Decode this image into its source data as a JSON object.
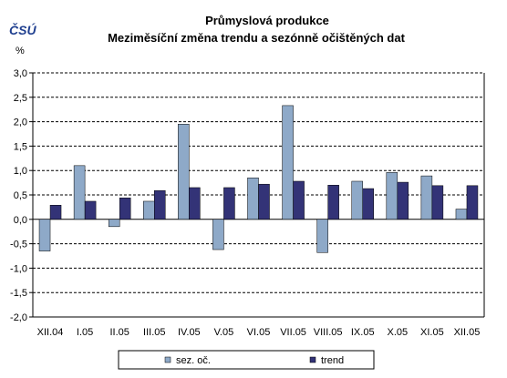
{
  "logo_text": "ČSÚ",
  "chart_data": {
    "type": "bar",
    "title": "Průmyslová produkce",
    "subtitle": "Meziměsíční změna trendu a sezónně očištěných dat",
    "ylabel": "%",
    "xlabel": "",
    "ylim": [
      -2.0,
      3.0
    ],
    "y_ticks": [
      "3,0",
      "2,5",
      "2,0",
      "1,5",
      "1,0",
      "0,5",
      "0,0",
      "-0,5",
      "-1,0",
      "-1,5",
      "-2,0"
    ],
    "y_tick_values": [
      3.0,
      2.5,
      2.0,
      1.5,
      1.0,
      0.5,
      0.0,
      -0.5,
      -1.0,
      -1.5,
      -2.0
    ],
    "grid": true,
    "legend_position": "bottom",
    "categories": [
      "XII.04",
      "I.05",
      "II.05",
      "III.05",
      "IV.05",
      "V.05",
      "VI.05",
      "VII.05",
      "VIII.05",
      "IX.05",
      "X.05",
      "XI.05",
      "XII.05"
    ],
    "series": [
      {
        "name": "sez. oč.",
        "color": "#8ea9c8",
        "values": [
          -0.65,
          1.1,
          -0.15,
          0.37,
          1.95,
          -0.62,
          0.85,
          2.33,
          -0.68,
          0.78,
          0.96,
          0.89,
          0.21
        ]
      },
      {
        "name": "trend",
        "color": "#333377",
        "values": [
          0.29,
          0.37,
          0.44,
          0.59,
          0.65,
          0.65,
          0.72,
          0.78,
          0.7,
          0.63,
          0.76,
          0.69,
          0.69
        ]
      }
    ]
  }
}
